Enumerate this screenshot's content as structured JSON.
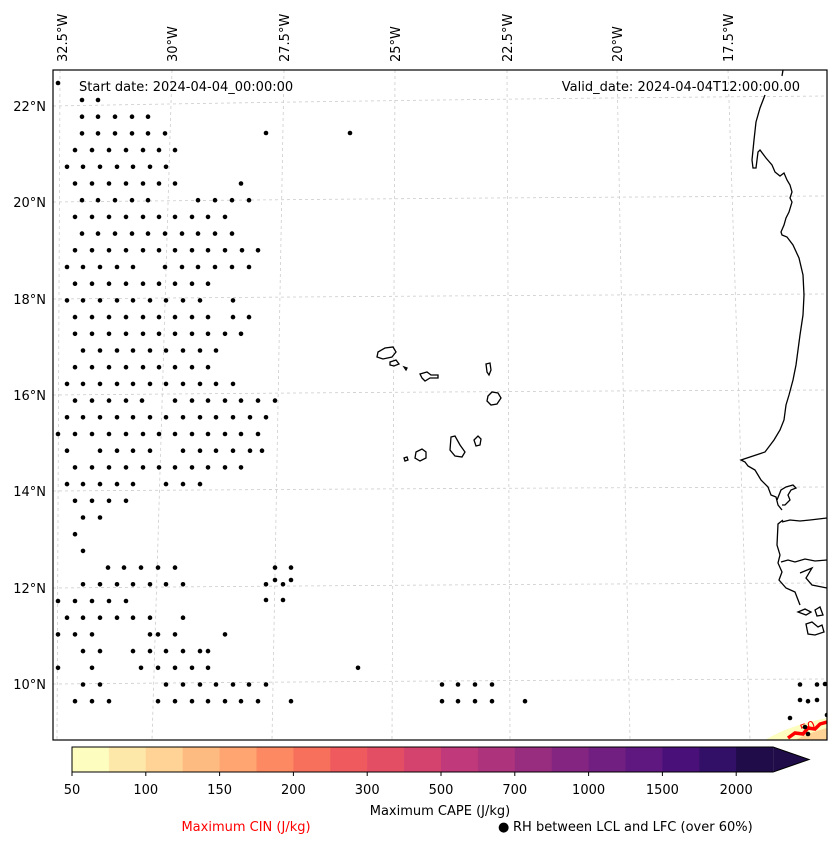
{
  "map": {
    "title_left": "Start date: 2024-04-04_00:00:00",
    "title_right": "Valid_date: 2024-04-04T12:00:00.00",
    "lon_ticks": [
      "32.5°W",
      "30°W",
      "27.5°W",
      "25°W",
      "22.5°W",
      "20°W",
      "17.5°W"
    ],
    "lat_ticks": [
      "22°N",
      "20°N",
      "18°N",
      "16°N",
      "14°N",
      "12°N",
      "10°N"
    ],
    "cin_contour_label": "50",
    "colors": {
      "cin_contour": "#ff0000",
      "coastline": "#000000",
      "gridline": "#cccccc",
      "rh_marker": "#000000"
    }
  },
  "colorbar": {
    "label": "Maximum CAPE (J/kg)",
    "tick_labels": [
      "50",
      "100",
      "150",
      "200",
      "300",
      "500",
      "700",
      "1000",
      "1500",
      "2000"
    ],
    "colors": [
      "#fcfdbf",
      "#fde7a9",
      "#fed395",
      "#febb81",
      "#fea572",
      "#fc8961",
      "#f7705c",
      "#ef5a5e",
      "#e34e65",
      "#d3436e",
      "#c0397a",
      "#ad347c",
      "#982d80",
      "#842681",
      "#711f81",
      "#5f187f",
      "#4a1079",
      "#331067",
      "#1f0c48"
    ],
    "extend": "max"
  },
  "legend": {
    "cin_label": "Maximum CIN (J/kg)",
    "cin_color": "#ff0000",
    "rh_symbol": "●",
    "rh_label": "RH between LCL and LFC (over 60%)"
  }
}
